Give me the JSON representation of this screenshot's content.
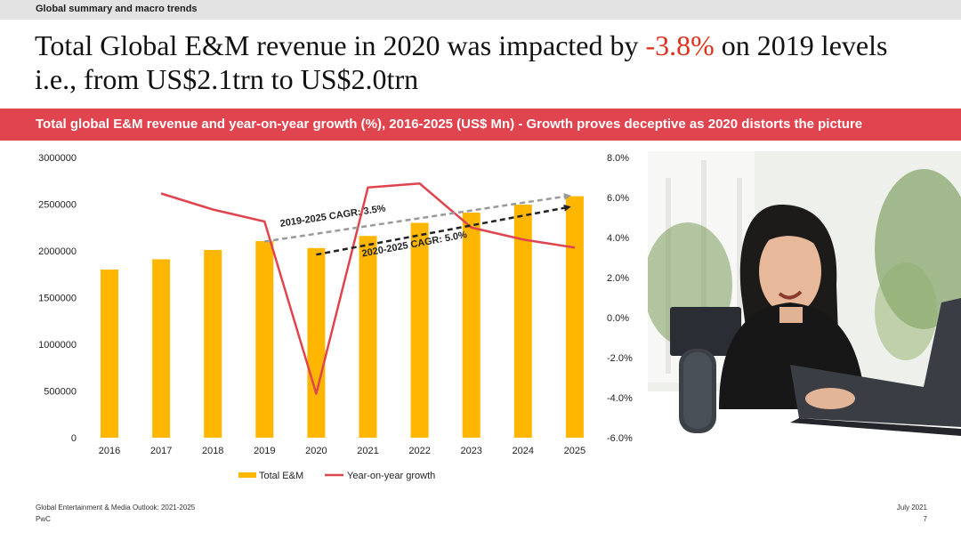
{
  "section_label": "Global summary and macro trends",
  "headline": {
    "pre": "Total Global E&M revenue in 2020 was impacted by ",
    "highlight": "-3.8%",
    "post": " on 2019 levels i.e., from US$2.1trn to US$2.0trn"
  },
  "banner_title": "Total global E&M revenue and year-on-year growth (%), 2016-2025 (US$ Mn) - Growth proves deceptive as 2020 distorts the picture",
  "chart_data": {
    "type": "bar",
    "categories": [
      "2016",
      "2017",
      "2018",
      "2019",
      "2020",
      "2021",
      "2022",
      "2023",
      "2024",
      "2025"
    ],
    "series": [
      {
        "name": "Total E&M",
        "type": "bar",
        "axis": "left",
        "color": "#ffb600",
        "values": [
          1800000,
          1910000,
          2010000,
          2105000,
          2030000,
          2160000,
          2300000,
          2410000,
          2495000,
          2585000
        ]
      },
      {
        "name": "Year-on-year growth",
        "type": "line",
        "axis": "right",
        "color": "#e0444e",
        "values": [
          null,
          6.2,
          5.4,
          4.8,
          -3.8,
          6.5,
          6.7,
          4.5,
          3.9,
          3.5
        ]
      }
    ],
    "y_left": {
      "min": 0,
      "max": 3000000,
      "ticks": [
        "0",
        "500000",
        "1000000",
        "1500000",
        "2000000",
        "2500000",
        "3000000"
      ]
    },
    "y_right": {
      "min": -6,
      "max": 8,
      "ticks": [
        "-6.0%",
        "-4.0%",
        "-2.0%",
        "0.0%",
        "2.0%",
        "4.0%",
        "6.0%",
        "8.0%"
      ]
    },
    "annotations": [
      {
        "label": "2019-2025 CAGR: 3.5%",
        "from_category": "2019",
        "to_category": "2025",
        "from_value": 2100000,
        "to_value": 2590000,
        "color": "#9a9a9a"
      },
      {
        "label": "2020-2025 CAGR: 5.0%",
        "from_category": "2020",
        "to_category": "2025",
        "from_value": 1960000,
        "to_value": 2470000,
        "color": "#222222"
      }
    ],
    "legend_position": "bottom",
    "grid": false
  },
  "footer": {
    "source": "Global Entertainment & Media Outlook: 2021-2025",
    "brand": "PwC",
    "date": "July 2021",
    "page": "7"
  }
}
